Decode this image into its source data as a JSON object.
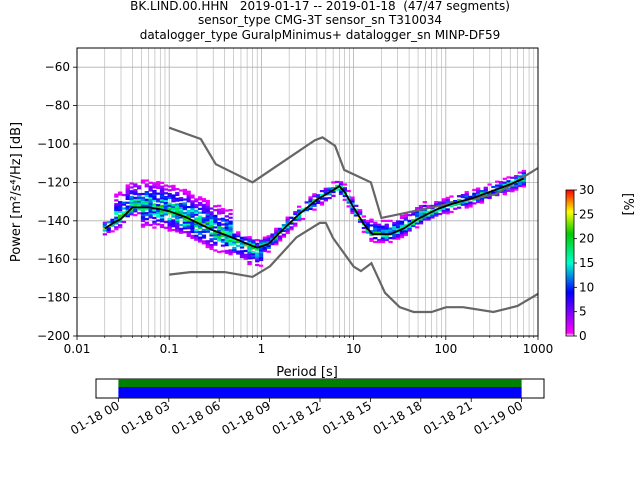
{
  "header": {
    "title_line1": "BK.LIND.00.HHN   2019-01-17 -- 2019-01-18  (47/47 segments)",
    "title_line2": "sensor_type CMG-3T sensor_sn T310034",
    "title_line3": "datalogger_type GuralpMinimus+ datalogger_sn MINP-DF59"
  },
  "colors": {
    "nhnm_nlnm": "#666666",
    "mode": "#000000",
    "grid": "#b0b0b0",
    "coverage_green": "#008000",
    "coverage_blue": "#0000ff"
  },
  "chart_data": {
    "type": "heatmap",
    "xlabel": "Period [s]",
    "ylabel": "Power [m²/s⁴/Hz] [dB]",
    "x_scale": "log",
    "xlim": [
      0.01,
      1000
    ],
    "ylim": [
      -200,
      -50
    ],
    "x_ticks": [
      0.01,
      0.1,
      1,
      10,
      100,
      1000
    ],
    "x_tick_labels": [
      "0.01",
      "0.1",
      "1",
      "10",
      "100",
      "1000"
    ],
    "y_ticks": [
      -60,
      -80,
      -100,
      -120,
      -140,
      -160,
      -180,
      -200
    ],
    "y_tick_labels": [
      "−60",
      "−80",
      "−100",
      "−120",
      "−140",
      "−160",
      "−180",
      "−200"
    ],
    "grid": true,
    "colorbar": {
      "label": "[%]",
      "range": [
        0,
        30
      ],
      "ticks": [
        0,
        5,
        10,
        15,
        20,
        25,
        30
      ],
      "tick_labels": [
        "0",
        "5",
        "10",
        "15",
        "20",
        "25",
        "30"
      ]
    },
    "nhnm": {
      "x": [
        0.1,
        0.22,
        0.32,
        0.8,
        3.8,
        4.6,
        6.3,
        7.9,
        15.4,
        20,
        354.8,
        1000
      ],
      "y": [
        -91.5,
        -97.4,
        -110.5,
        -120,
        -98,
        -96.5,
        -101,
        -113.5,
        -120,
        -138.5,
        -126,
        -112.5
      ]
    },
    "nlnm": {
      "x": [
        0.1,
        0.17,
        0.4,
        0.8,
        1.24,
        2.4,
        4.3,
        5,
        6,
        10,
        12,
        15.6,
        21.9,
        31.6,
        45,
        70,
        101,
        154,
        328,
        600,
        1000
      ],
      "y": [
        -168,
        -166.7,
        -166.7,
        -169.2,
        -163.7,
        -148.6,
        -141.1,
        -141.1,
        -149,
        -163.8,
        -166.2,
        -162.1,
        -177.5,
        -185,
        -187.5,
        -187.5,
        -185,
        -185,
        -187.5,
        -184.4,
        -178
      ]
    },
    "mode_curve": {
      "x": [
        0.02,
        0.025,
        0.03,
        0.04,
        0.06,
        0.08,
        0.1,
        0.15,
        0.2,
        0.3,
        0.5,
        0.7,
        0.9,
        1.2,
        1.6,
        2.5,
        4,
        6,
        7,
        8,
        10,
        13,
        16,
        25,
        35,
        50,
        80,
        120,
        200,
        300,
        500,
        700
      ],
      "y": [
        -144,
        -141,
        -139,
        -133,
        -133,
        -134,
        -135,
        -138,
        -141,
        -145,
        -149,
        -152,
        -154,
        -152,
        -146,
        -137,
        -129,
        -124,
        -122,
        -125,
        -133,
        -142,
        -147,
        -147,
        -144,
        -139,
        -134,
        -131,
        -128,
        -125,
        -121,
        -118
      ]
    },
    "coverage": {
      "x_tick_labels": [
        "01-18 00",
        "01-18 03",
        "01-18 06",
        "01-18 09",
        "01-18 12",
        "01-18 15",
        "01-18 18",
        "01-18 21",
        "01-19 00"
      ],
      "start_fraction": 0.05,
      "end_fraction": 0.95
    }
  }
}
